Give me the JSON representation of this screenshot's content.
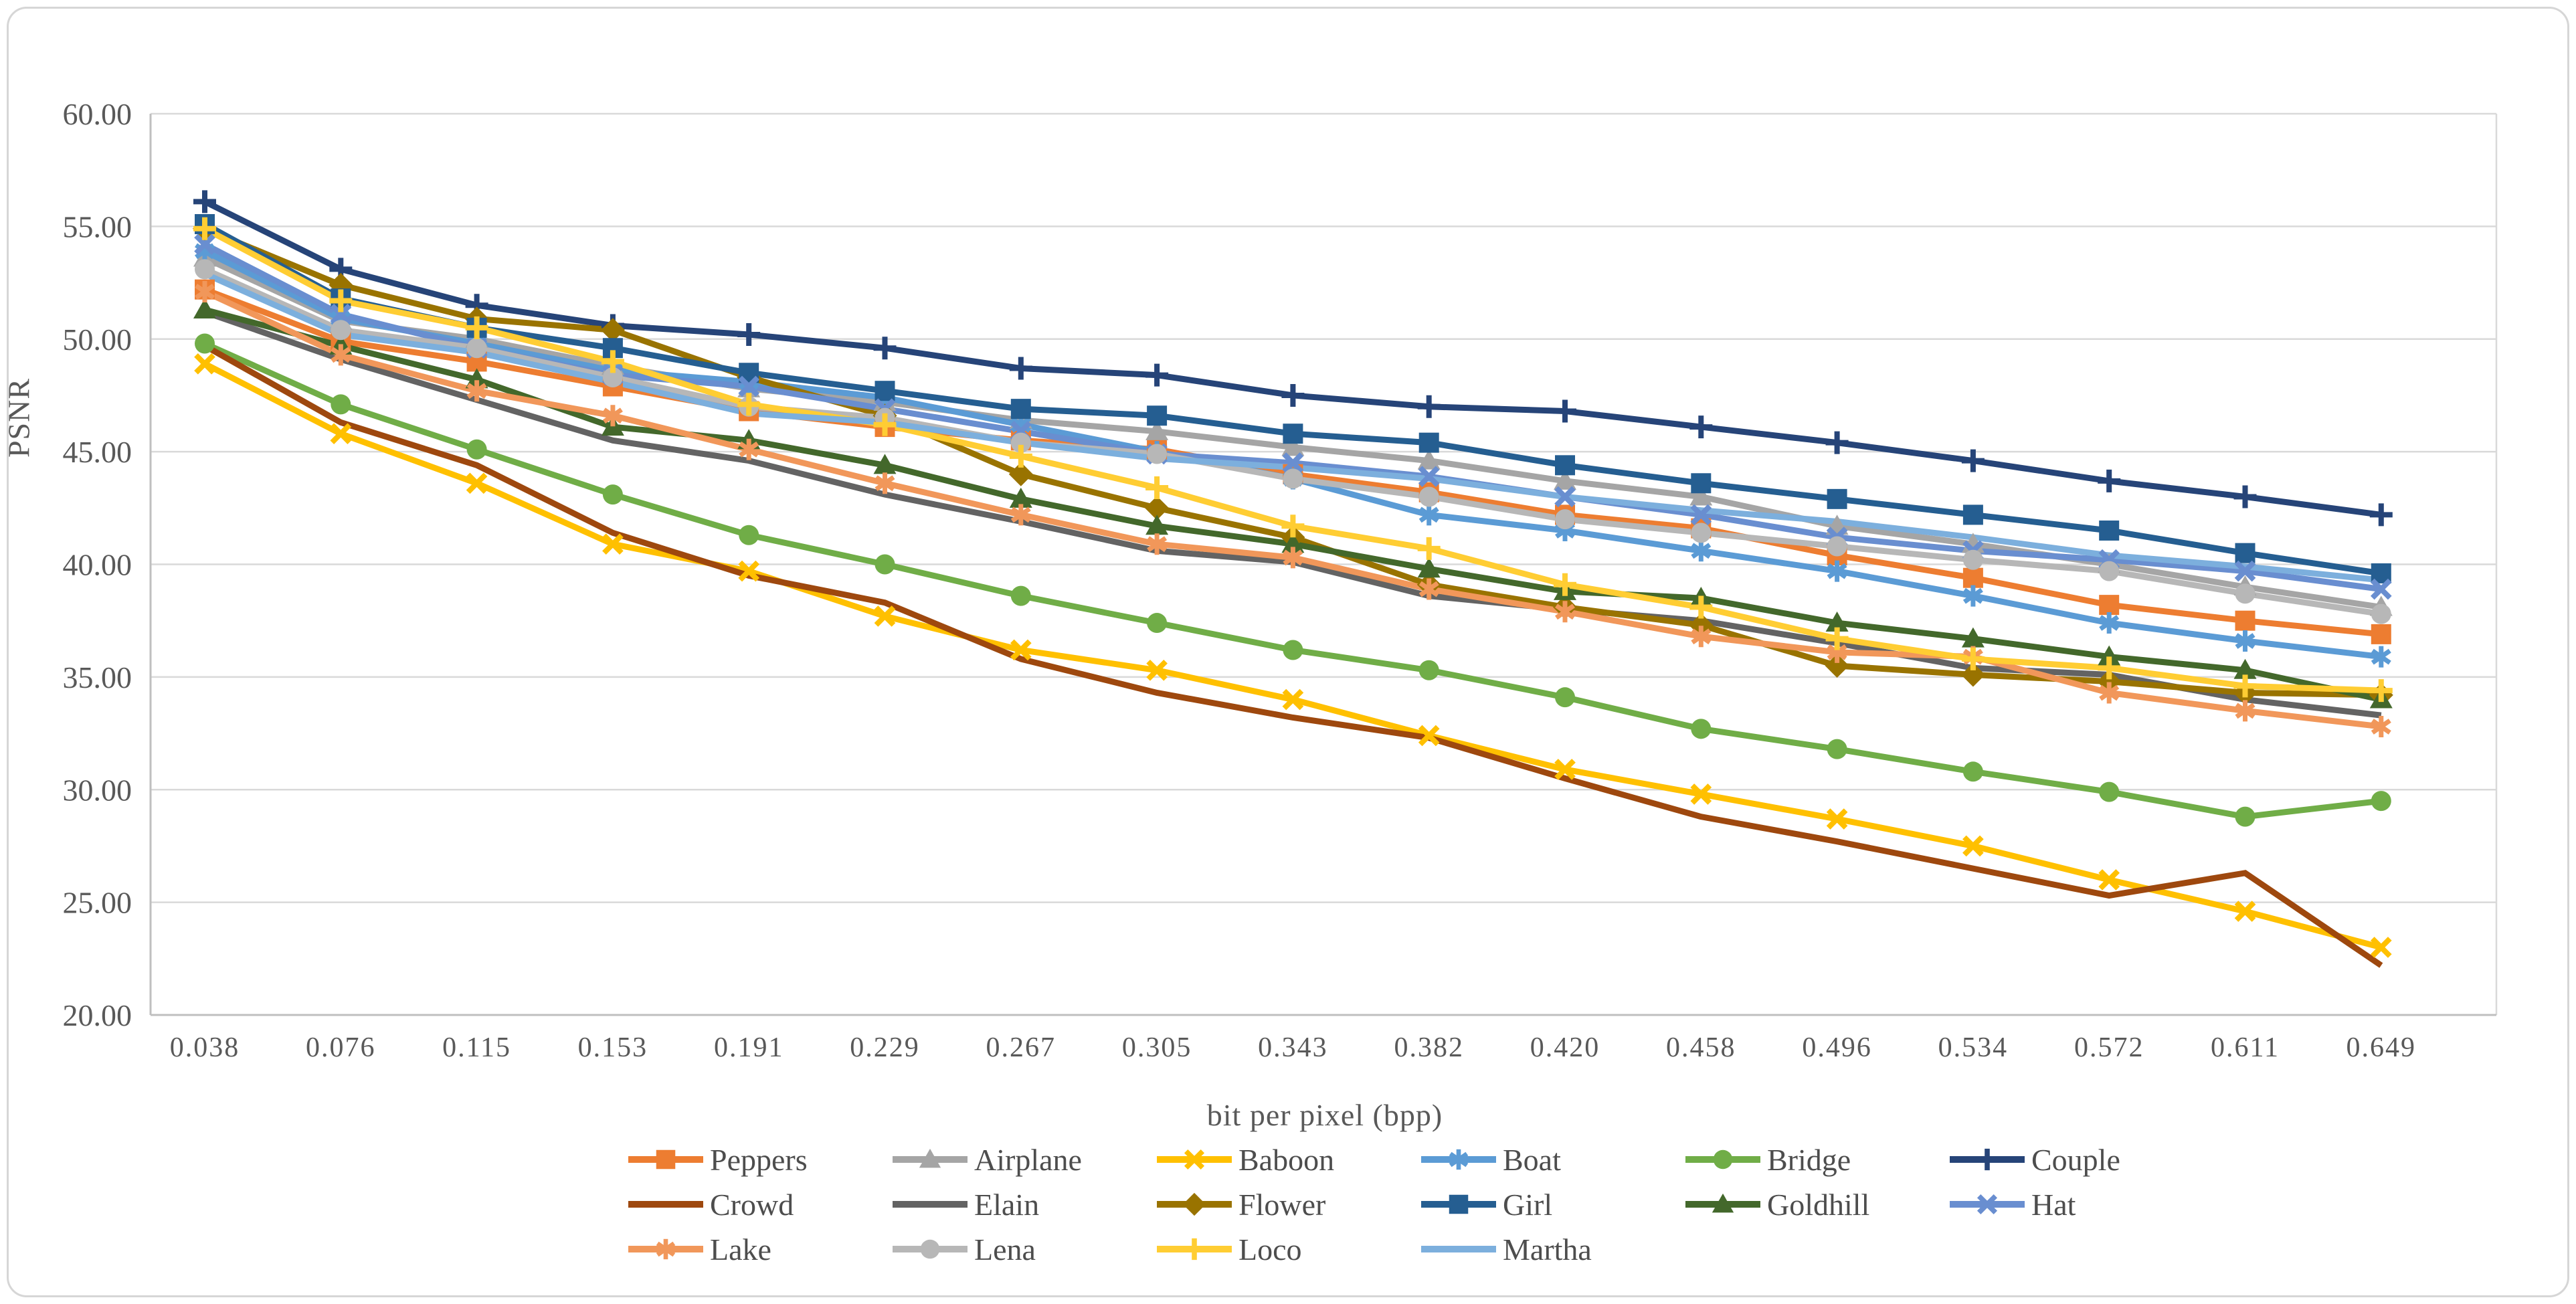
{
  "page": {
    "background": "#ffffff",
    "frame_border_color": "#d6d6d6",
    "text_color": "#595959",
    "gridline_color": "#d9d9d9",
    "axis_line_color": "#bfbfbf"
  },
  "chart_data": {
    "type": "line",
    "title": "",
    "xlabel": "bit per pixel (bpp)",
    "ylabel": "PSNR",
    "ylim": [
      20,
      60
    ],
    "y_tick_step": 5,
    "y_tick_labels": [
      "60.00",
      "55.00",
      "50.00",
      "45.00",
      "40.00",
      "35.00",
      "30.00",
      "25.00",
      "20.00"
    ],
    "grid": "horizontal",
    "legend_position": "bottom",
    "x_labels": [
      "0.038",
      "0.076",
      "0.115",
      "0.153",
      "0.191",
      "0.229",
      "0.267",
      "0.305",
      "0.343",
      "0.382",
      "0.420",
      "0.458",
      "0.496",
      "0.534",
      "0.572",
      "0.611",
      "0.649"
    ],
    "series": [
      {
        "name": "Peppers",
        "color": "#ED7D31",
        "marker": "square",
        "values": [
          52.2,
          49.9,
          49.0,
          47.9,
          46.8,
          46.1,
          45.5,
          45.1,
          44.0,
          43.2,
          42.2,
          41.6,
          40.4,
          39.4,
          38.2,
          37.5,
          36.9
        ]
      },
      {
        "name": "Airplane",
        "color": "#A5A5A5",
        "marker": "triangle",
        "values": [
          53.6,
          50.8,
          50.0,
          48.8,
          47.8,
          47.2,
          46.4,
          45.9,
          45.2,
          44.6,
          43.7,
          43.0,
          41.7,
          40.9,
          40.0,
          39.0,
          38.1
        ]
      },
      {
        "name": "Baboon",
        "color": "#FFC000",
        "marker": "x",
        "values": [
          48.9,
          45.8,
          43.6,
          40.9,
          39.7,
          37.7,
          36.2,
          35.3,
          34.0,
          32.4,
          30.9,
          29.8,
          28.7,
          27.5,
          26.0,
          24.6,
          23.0
        ]
      },
      {
        "name": "Boat",
        "color": "#5B9BD5",
        "marker": "asterisk",
        "values": [
          53.9,
          50.9,
          49.8,
          48.6,
          48.1,
          47.4,
          46.2,
          45.0,
          43.8,
          42.2,
          41.5,
          40.6,
          39.7,
          38.6,
          37.4,
          36.6,
          35.9
        ]
      },
      {
        "name": "Bridge",
        "color": "#70AD47",
        "marker": "circle",
        "values": [
          49.8,
          47.1,
          45.1,
          43.1,
          41.3,
          40.0,
          38.6,
          37.4,
          36.2,
          35.3,
          34.1,
          32.7,
          31.8,
          30.8,
          29.9,
          28.8,
          29.5
        ]
      },
      {
        "name": "Couple",
        "color": "#264478",
        "marker": "plus",
        "values": [
          56.1,
          53.1,
          51.5,
          50.6,
          50.2,
          49.6,
          48.7,
          48.4,
          47.5,
          47.0,
          46.8,
          46.1,
          45.4,
          44.6,
          43.7,
          43.0,
          42.2
        ]
      },
      {
        "name": "Crowd",
        "color": "#9E480E",
        "marker": "none",
        "values": [
          49.7,
          46.3,
          44.4,
          41.4,
          39.5,
          38.3,
          35.8,
          34.3,
          33.2,
          32.3,
          30.5,
          28.8,
          27.7,
          26.5,
          25.3,
          26.3,
          22.2
        ]
      },
      {
        "name": "Elain",
        "color": "#636363",
        "marker": "none",
        "values": [
          51.2,
          49.1,
          47.3,
          45.5,
          44.6,
          43.1,
          41.9,
          40.6,
          40.1,
          38.6,
          38.0,
          37.5,
          36.5,
          35.4,
          35.1,
          34.0,
          33.3
        ]
      },
      {
        "name": "Flower",
        "color": "#997300",
        "marker": "diamond",
        "values": [
          54.9,
          52.4,
          50.9,
          50.4,
          48.3,
          46.6,
          44.0,
          42.5,
          41.2,
          39.1,
          38.1,
          37.3,
          35.5,
          35.1,
          34.8,
          34.3,
          34.2
        ]
      },
      {
        "name": "Girl",
        "color": "#255E91",
        "marker": "square",
        "values": [
          55.1,
          51.8,
          50.5,
          49.6,
          48.5,
          47.7,
          46.9,
          46.6,
          45.8,
          45.4,
          44.4,
          43.6,
          42.9,
          42.2,
          41.5,
          40.5,
          39.6
        ]
      },
      {
        "name": "Goldhill",
        "color": "#43682B",
        "marker": "triangle",
        "values": [
          51.3,
          49.7,
          48.2,
          46.1,
          45.5,
          44.4,
          42.9,
          41.7,
          40.9,
          39.8,
          38.8,
          38.5,
          37.4,
          36.7,
          35.9,
          35.3,
          34.0
        ]
      },
      {
        "name": "Hat",
        "color": "#698ED0",
        "marker": "x",
        "values": [
          54.2,
          51.1,
          49.6,
          48.4,
          47.9,
          46.9,
          45.9,
          44.9,
          44.5,
          43.9,
          43.0,
          42.2,
          41.2,
          40.6,
          40.2,
          39.7,
          38.9
        ]
      },
      {
        "name": "Lake",
        "color": "#F1975A",
        "marker": "asterisk",
        "values": [
          52.1,
          49.3,
          47.7,
          46.6,
          45.1,
          43.6,
          42.2,
          40.9,
          40.3,
          38.9,
          37.9,
          36.8,
          36.1,
          35.9,
          34.3,
          33.5,
          32.8
        ]
      },
      {
        "name": "Lena",
        "color": "#B7B7B7",
        "marker": "circle",
        "values": [
          53.1,
          50.4,
          49.6,
          48.3,
          47.0,
          46.5,
          45.4,
          44.9,
          43.8,
          43.0,
          42.0,
          41.4,
          40.8,
          40.2,
          39.7,
          38.7,
          37.8
        ]
      },
      {
        "name": "Loco",
        "color": "#FFCD33",
        "marker": "plus",
        "values": [
          54.9,
          51.7,
          50.5,
          49.0,
          47.1,
          46.2,
          44.8,
          43.4,
          41.7,
          40.7,
          39.1,
          38.1,
          36.7,
          35.8,
          35.4,
          34.6,
          34.4
        ]
      },
      {
        "name": "Martha",
        "color": "#7CAFDD",
        "marker": "none",
        "values": [
          52.9,
          50.2,
          49.4,
          48.1,
          46.7,
          46.3,
          45.4,
          44.7,
          44.3,
          43.8,
          43.0,
          42.4,
          41.9,
          41.2,
          40.4,
          39.9,
          39.3
        ]
      }
    ],
    "legend_rows": [
      [
        "Peppers",
        "Airplane",
        "Baboon",
        "Boat",
        "Bridge",
        "Couple"
      ],
      [
        "Crowd",
        "Elain",
        "Flower",
        "Girl",
        "Goldhill",
        "Hat"
      ],
      [
        "Lake",
        "Lena",
        "Loco",
        "Martha"
      ]
    ]
  }
}
